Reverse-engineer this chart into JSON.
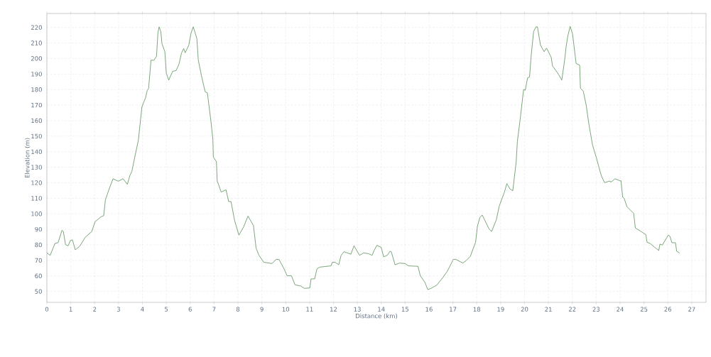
{
  "chart_data": {
    "type": "line",
    "xlabel": "Distance (km)",
    "ylabel": "Elevation (m)",
    "x": [
      0,
      0.14,
      0.2,
      0.34,
      0.47,
      0.63,
      0.69,
      0.78,
      0.89,
      0.99,
      1.07,
      1.19,
      1.39,
      1.6,
      1.88,
      2.02,
      2.28,
      2.38,
      2.45,
      2.59,
      2.77,
      2.99,
      3.19,
      3.37,
      3.47,
      3.56,
      3.7,
      3.83,
      3.98,
      4.13,
      4.2,
      4.26,
      4.36,
      4.48,
      4.59,
      4.65,
      4.7,
      4.77,
      4.82,
      4.94,
      5.0,
      5.1,
      5.27,
      5.41,
      5.53,
      5.64,
      5.73,
      5.79,
      5.94,
      6.04,
      6.13,
      6.28,
      6.34,
      6.48,
      6.63,
      6.72,
      6.87,
      6.95,
      6.97,
      7.1,
      7.13,
      7.3,
      7.5,
      7.61,
      7.71,
      7.86,
      8.04,
      8.24,
      8.42,
      8.65,
      8.76,
      8.88,
      9.08,
      9.43,
      9.6,
      9.72,
      9.92,
      10.06,
      10.24,
      10.39,
      10.63,
      10.78,
      11.01,
      11.06,
      11.21,
      11.31,
      11.43,
      11.9,
      11.95,
      12.07,
      12.22,
      12.32,
      12.44,
      12.73,
      12.86,
      13.09,
      13.26,
      13.45,
      13.62,
      13.7,
      13.82,
      14.0,
      14.1,
      14.25,
      14.37,
      14.42,
      14.58,
      14.77,
      14.99,
      15.14,
      15.54,
      15.63,
      15.83,
      15.95,
      16.08,
      16.32,
      16.57,
      16.77,
      17.02,
      17.12,
      17.42,
      17.55,
      17.73,
      17.95,
      18.03,
      18.13,
      18.23,
      18.52,
      18.62,
      18.82,
      18.94,
      19.04,
      19.16,
      19.26,
      19.39,
      19.51,
      19.65,
      19.7,
      19.83,
      19.96,
      20.03,
      20.13,
      20.21,
      20.28,
      20.38,
      20.48,
      20.54,
      20.67,
      20.82,
      20.92,
      21.0,
      21.12,
      21.17,
      21.42,
      21.56,
      21.68,
      21.74,
      21.81,
      21.91,
      22.01,
      22.16,
      22.31,
      22.34,
      22.46,
      22.58,
      22.7,
      22.85,
      23.0,
      23.12,
      23.22,
      23.35,
      23.54,
      23.64,
      23.79,
      23.99,
      24.04,
      24.11,
      24.17,
      24.29,
      24.57,
      24.64,
      24.88,
      25.08,
      25.13,
      25.26,
      25.43,
      25.62,
      25.67,
      25.77,
      26.02,
      26.09,
      26.17,
      26.32,
      26.37,
      26.49
    ],
    "series": [
      {
        "color": "#5a8f5a",
        "values": [
          74.8,
          73.3,
          75.6,
          81,
          81.4,
          89.3,
          88.6,
          80.2,
          79.4,
          83,
          83.2,
          76.8,
          79.4,
          84.8,
          88.6,
          95,
          98.2,
          98.8,
          109,
          115.2,
          122.6,
          121,
          122.6,
          119,
          124.4,
          127.4,
          138,
          147.3,
          168.9,
          174.7,
          179.3,
          180.8,
          199,
          198.8,
          201.4,
          216.6,
          220.4,
          217.4,
          209.5,
          204.4,
          190.7,
          186.1,
          191.8,
          192.2,
          196.3,
          203.7,
          206.4,
          203.7,
          208.5,
          216.6,
          220.4,
          212.8,
          199,
          188.4,
          178.5,
          178,
          159.5,
          148,
          136.6,
          133.5,
          121.3,
          114,
          115.5,
          107.9,
          107.9,
          95.7,
          86.3,
          91.6,
          98.5,
          92.4,
          77.9,
          73.3,
          68.8,
          68,
          70.7,
          70.6,
          64.9,
          60.1,
          60.1,
          54.3,
          53.5,
          52,
          52.3,
          58.1,
          58.1,
          64.6,
          65.7,
          66.5,
          68.8,
          68.8,
          67.2,
          73.3,
          75.6,
          74,
          79.4,
          73.3,
          74.8,
          74.4,
          73.3,
          76.4,
          79.7,
          78.4,
          72.3,
          73.3,
          75.9,
          75.6,
          67.2,
          68.3,
          68,
          66.5,
          66.2,
          60.4,
          55.8,
          51.2,
          52,
          54,
          58.8,
          63.1,
          70.7,
          70.7,
          68.3,
          69.8,
          72.6,
          81.7,
          92.1,
          97.7,
          99.2,
          90.1,
          88.6,
          96.2,
          104.9,
          109.1,
          114,
          119.5,
          116,
          114.9,
          133.5,
          146.5,
          162.5,
          180,
          179.6,
          187.6,
          188.1,
          202.1,
          217.4,
          220.4,
          220.4,
          208.5,
          204.4,
          206.7,
          204.4,
          200.6,
          195.3,
          189.9,
          186.1,
          199,
          207.5,
          214.3,
          220.7,
          215.9,
          196.8,
          195.7,
          180.8,
          179,
          170.1,
          157.2,
          144.2,
          136.6,
          129.7,
          124.4,
          120.1,
          121,
          120.6,
          122.6,
          121.3,
          121.3,
          110.7,
          110,
          104.6,
          100.3,
          90.9,
          88.6,
          86.6,
          81.7,
          80.9,
          78.7,
          76.4,
          80.5,
          79.9,
          86.3,
          85.5,
          81.4,
          81.4,
          75.9,
          74.8
        ]
      }
    ],
    "xlim": [
      0,
      27.6
    ],
    "ylim": [
      43,
      229
    ],
    "xticks": [
      0,
      1,
      2,
      3,
      4,
      5,
      6,
      7,
      8,
      9,
      10,
      11,
      12,
      13,
      14,
      15,
      16,
      17,
      18,
      19,
      20,
      21,
      22,
      23,
      24,
      25,
      26,
      27
    ],
    "yticks": [
      50,
      60,
      70,
      80,
      90,
      100,
      110,
      120,
      130,
      140,
      150,
      160,
      170,
      180,
      190,
      200,
      210,
      220
    ],
    "grid": true
  }
}
